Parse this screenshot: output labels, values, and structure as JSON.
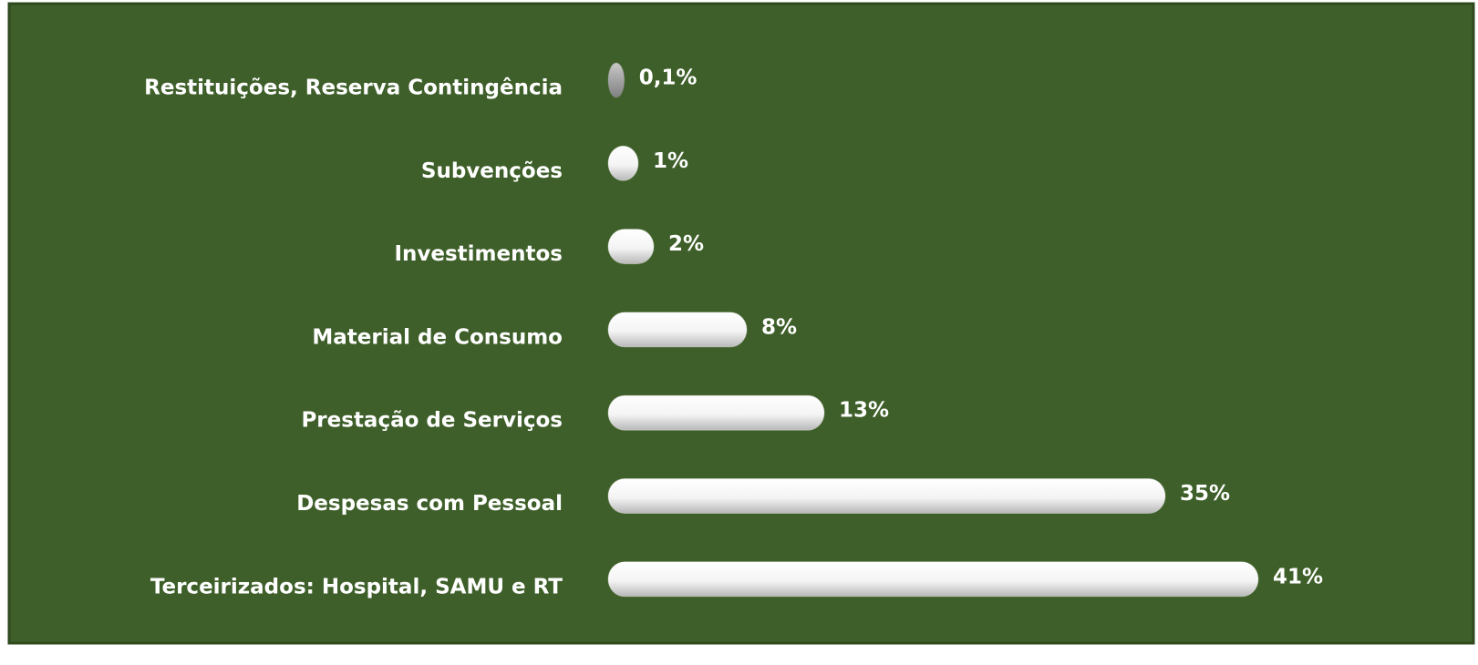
{
  "chart_data": {
    "type": "bar",
    "orientation": "horizontal",
    "categories": [
      "Restituições, Reserva Contingência",
      "Subvenções",
      "Investimentos",
      "Material de Consumo",
      "Prestação de Serviços",
      "Despesas com Pessoal",
      "Terceirizados: Hospital, SAMU e RT"
    ],
    "values": [
      0.1,
      1,
      2,
      8,
      13,
      35,
      41
    ],
    "value_labels": [
      "0,1%",
      "1%",
      "2%",
      "8%",
      "13%",
      "35%",
      "41%"
    ],
    "colors": [
      "#a6a6a6",
      "#ffffff",
      "#ffffff",
      "#ffffff",
      "#ffffff",
      "#ffffff",
      "#ffffff"
    ]
  }
}
